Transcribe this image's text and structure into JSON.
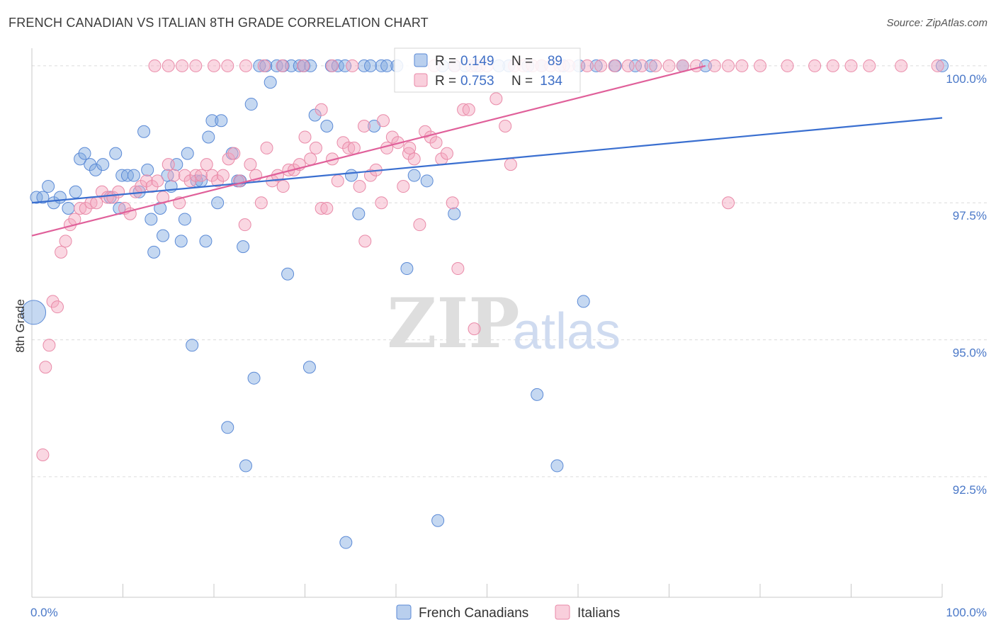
{
  "header": {
    "title": "FRENCH CANADIAN VS ITALIAN 8TH GRADE CORRELATION CHART",
    "source": "Source: ZipAtlas.com"
  },
  "watermark": {
    "zip": "ZIP",
    "atlas": "atlas"
  },
  "chart_data": {
    "type": "scatter",
    "ylabel": "8th Grade",
    "xlim": [
      0,
      100
    ],
    "ylim": [
      90.3,
      100.4
    ],
    "x_tick_labels": [
      {
        "value": 0,
        "label": "0.0%"
      },
      {
        "value": 100,
        "label": "100.0%"
      }
    ],
    "y_tick_labels": [
      {
        "value": 100.0,
        "label": "100.0%"
      },
      {
        "value": 97.5,
        "label": "97.5%"
      },
      {
        "value": 95.0,
        "label": "95.0%"
      },
      {
        "value": 92.5,
        "label": "92.5%"
      }
    ],
    "grid": "horizontal dashed",
    "legend_top": [
      {
        "series": "French Canadians",
        "r_label": "R =",
        "r_value": "0.149",
        "n_label": "N =",
        "n_value": "89"
      },
      {
        "series": "Italians",
        "r_label": "R =",
        "r_value": "0.753",
        "n_label": "N =",
        "n_value": "134"
      }
    ],
    "legend_bottom_placement": "bottom-center",
    "series": [
      {
        "name": "French Canadians",
        "color": "#7fa8e0",
        "stroke": "#5b8ad6",
        "line_color": "#3a6fd0",
        "trend": {
          "x": [
            0,
            100
          ],
          "y": [
            97.5,
            99.05
          ]
        },
        "points": [
          [
            0.5,
            97.6
          ],
          [
            1.2,
            97.6
          ],
          [
            1.8,
            97.8
          ],
          [
            2.4,
            97.5
          ],
          [
            3.1,
            97.6
          ],
          [
            4.0,
            97.4
          ],
          [
            4.8,
            97.7
          ],
          [
            5.3,
            98.3
          ],
          [
            5.8,
            98.4
          ],
          [
            6.4,
            98.2
          ],
          [
            7.0,
            98.1
          ],
          [
            7.8,
            98.2
          ],
          [
            8.6,
            97.6
          ],
          [
            9.2,
            98.4
          ],
          [
            9.6,
            97.4
          ],
          [
            9.9,
            98.0
          ],
          [
            10.5,
            98.0
          ],
          [
            11.2,
            98.0
          ],
          [
            11.8,
            97.7
          ],
          [
            12.3,
            98.8
          ],
          [
            12.7,
            98.1
          ],
          [
            13.1,
            97.2
          ],
          [
            13.4,
            96.6
          ],
          [
            14.1,
            97.4
          ],
          [
            14.4,
            96.9
          ],
          [
            14.9,
            98.0
          ],
          [
            15.3,
            97.8
          ],
          [
            15.9,
            98.2
          ],
          [
            16.4,
            96.8
          ],
          [
            16.8,
            97.2
          ],
          [
            17.1,
            98.4
          ],
          [
            18.1,
            97.9
          ],
          [
            18.6,
            97.9
          ],
          [
            19.1,
            96.8
          ],
          [
            19.4,
            98.7
          ],
          [
            19.8,
            99.0
          ],
          [
            20.4,
            97.5
          ],
          [
            20.8,
            99.0
          ],
          [
            22.0,
            98.4
          ],
          [
            22.6,
            97.9
          ],
          [
            22.9,
            97.9
          ],
          [
            23.2,
            96.7
          ],
          [
            24.1,
            99.3
          ],
          [
            25.0,
            100.0
          ],
          [
            25.7,
            100.0
          ],
          [
            26.2,
            99.7
          ],
          [
            26.9,
            100.0
          ],
          [
            27.6,
            100.0
          ],
          [
            28.1,
            96.2
          ],
          [
            28.5,
            100.0
          ],
          [
            29.4,
            100.0
          ],
          [
            29.9,
            100.0
          ],
          [
            30.6,
            100.0
          ],
          [
            31.1,
            99.1
          ],
          [
            32.4,
            98.9
          ],
          [
            32.9,
            100.0
          ],
          [
            33.6,
            100.0
          ],
          [
            34.4,
            100.0
          ],
          [
            35.1,
            98.0
          ],
          [
            35.9,
            97.3
          ],
          [
            36.5,
            100.0
          ],
          [
            37.2,
            100.0
          ],
          [
            37.6,
            98.9
          ],
          [
            38.4,
            100.0
          ],
          [
            39.0,
            100.0
          ],
          [
            40.1,
            100.0
          ],
          [
            41.2,
            96.3
          ],
          [
            42.0,
            98.0
          ],
          [
            43.4,
            97.9
          ],
          [
            45.1,
            100.0
          ],
          [
            46.4,
            100.0
          ],
          [
            47.6,
            100.0
          ],
          [
            48.8,
            100.0
          ],
          [
            52.4,
            100.0
          ],
          [
            54.5,
            100.0
          ],
          [
            56.0,
            100.0
          ],
          [
            58.4,
            100.0
          ],
          [
            60.1,
            100.0
          ],
          [
            62.0,
            100.0
          ],
          [
            64.1,
            100.0
          ],
          [
            66.3,
            100.0
          ],
          [
            68.0,
            100.0
          ],
          [
            71.5,
            100.0
          ],
          [
            74.0,
            100.0
          ],
          [
            100.0,
            100.0
          ],
          [
            0.2,
            95.5
          ],
          [
            17.6,
            94.9
          ],
          [
            21.5,
            93.4
          ],
          [
            23.5,
            92.7
          ],
          [
            24.4,
            94.3
          ],
          [
            30.5,
            94.5
          ],
          [
            34.5,
            91.3
          ],
          [
            44.6,
            91.7
          ],
          [
            55.5,
            94.0
          ],
          [
            57.7,
            92.7
          ],
          [
            60.6,
            95.7
          ],
          [
            46.4,
            97.3
          ],
          [
            51.3,
            100.0
          ]
        ]
      },
      {
        "name": "Italians",
        "color": "#f4a7bf",
        "stroke": "#e98aa8",
        "line_color": "#e0609a",
        "trend": {
          "x": [
            0,
            74
          ],
          "y": [
            96.9,
            100.0
          ]
        },
        "points": [
          [
            1.2,
            92.9
          ],
          [
            1.5,
            94.5
          ],
          [
            1.9,
            94.9
          ],
          [
            2.3,
            95.7
          ],
          [
            2.8,
            95.6
          ],
          [
            3.2,
            96.6
          ],
          [
            3.7,
            96.8
          ],
          [
            4.2,
            97.1
          ],
          [
            4.7,
            97.2
          ],
          [
            5.3,
            97.4
          ],
          [
            5.9,
            97.4
          ],
          [
            6.5,
            97.5
          ],
          [
            7.1,
            97.5
          ],
          [
            7.7,
            97.7
          ],
          [
            8.3,
            97.6
          ],
          [
            8.9,
            97.6
          ],
          [
            9.5,
            97.7
          ],
          [
            10.2,
            97.4
          ],
          [
            10.8,
            97.3
          ],
          [
            11.4,
            97.7
          ],
          [
            12.0,
            97.8
          ],
          [
            12.6,
            97.9
          ],
          [
            13.2,
            97.8
          ],
          [
            13.8,
            97.9
          ],
          [
            14.4,
            97.6
          ],
          [
            15.0,
            98.2
          ],
          [
            15.6,
            98.0
          ],
          [
            16.2,
            97.5
          ],
          [
            16.8,
            98.0
          ],
          [
            17.4,
            97.9
          ],
          [
            18.0,
            98.0
          ],
          [
            18.6,
            98.0
          ],
          [
            19.2,
            98.2
          ],
          [
            19.8,
            98.0
          ],
          [
            20.4,
            97.9
          ],
          [
            21.0,
            98.0
          ],
          [
            21.6,
            98.3
          ],
          [
            22.2,
            98.4
          ],
          [
            22.8,
            97.9
          ],
          [
            23.4,
            97.1
          ],
          [
            24.0,
            98.2
          ],
          [
            24.6,
            98.0
          ],
          [
            25.2,
            97.5
          ],
          [
            25.8,
            98.5
          ],
          [
            26.4,
            97.9
          ],
          [
            27.0,
            98.0
          ],
          [
            27.6,
            97.8
          ],
          [
            28.2,
            98.1
          ],
          [
            28.8,
            98.1
          ],
          [
            29.4,
            98.2
          ],
          [
            30.0,
            98.7
          ],
          [
            30.6,
            98.3
          ],
          [
            31.2,
            98.5
          ],
          [
            31.8,
            97.4
          ],
          [
            32.4,
            97.4
          ],
          [
            33.0,
            98.3
          ],
          [
            33.6,
            97.9
          ],
          [
            34.2,
            98.6
          ],
          [
            34.8,
            98.5
          ],
          [
            35.4,
            98.5
          ],
          [
            36.0,
            97.8
          ],
          [
            36.6,
            96.8
          ],
          [
            37.2,
            98.0
          ],
          [
            37.8,
            98.1
          ],
          [
            38.4,
            97.5
          ],
          [
            39.0,
            98.5
          ],
          [
            39.6,
            98.7
          ],
          [
            40.2,
            98.6
          ],
          [
            40.8,
            97.8
          ],
          [
            41.4,
            98.4
          ],
          [
            42.0,
            98.3
          ],
          [
            42.6,
            97.1
          ],
          [
            43.2,
            98.8
          ],
          [
            43.8,
            98.7
          ],
          [
            44.4,
            98.6
          ],
          [
            45.0,
            98.3
          ],
          [
            45.6,
            98.4
          ],
          [
            46.2,
            97.5
          ],
          [
            46.8,
            96.3
          ],
          [
            47.4,
            99.2
          ],
          [
            48.0,
            99.2
          ],
          [
            48.6,
            95.2
          ],
          [
            49.2,
            100.0
          ],
          [
            50.0,
            100.0
          ],
          [
            51.0,
            99.4
          ],
          [
            52.0,
            98.9
          ],
          [
            53.0,
            100.0
          ],
          [
            54.0,
            100.0
          ],
          [
            55.0,
            100.0
          ],
          [
            56.0,
            100.0
          ],
          [
            57.0,
            100.0
          ],
          [
            58.0,
            100.0
          ],
          [
            59.0,
            100.0
          ],
          [
            61.0,
            100.0
          ],
          [
            62.5,
            100.0
          ],
          [
            64.0,
            100.0
          ],
          [
            65.5,
            100.0
          ],
          [
            67.0,
            100.0
          ],
          [
            68.5,
            100.0
          ],
          [
            70.0,
            100.0
          ],
          [
            71.5,
            100.0
          ],
          [
            73.0,
            100.0
          ],
          [
            75.0,
            100.0
          ],
          [
            76.5,
            100.0
          ],
          [
            78.0,
            100.0
          ],
          [
            80.0,
            100.0
          ],
          [
            83.0,
            100.0
          ],
          [
            86.0,
            100.0
          ],
          [
            88.0,
            100.0
          ],
          [
            90.0,
            100.0
          ],
          [
            92.0,
            100.0
          ],
          [
            95.5,
            100.0
          ],
          [
            99.5,
            100.0
          ],
          [
            76.5,
            97.5
          ],
          [
            52.6,
            98.2
          ],
          [
            38.6,
            99.0
          ],
          [
            41.5,
            98.5
          ],
          [
            36.5,
            98.9
          ],
          [
            31.8,
            99.2
          ],
          [
            44.2,
            100.0
          ],
          [
            46.5,
            100.0
          ],
          [
            48.3,
            100.0
          ],
          [
            35.2,
            100.0
          ],
          [
            33.0,
            100.0
          ],
          [
            29.8,
            100.0
          ],
          [
            27.5,
            100.0
          ],
          [
            25.5,
            100.0
          ],
          [
            23.5,
            100.0
          ],
          [
            21.5,
            100.0
          ],
          [
            20.0,
            100.0
          ],
          [
            18.0,
            100.0
          ],
          [
            16.5,
            100.0
          ],
          [
            15.0,
            100.0
          ],
          [
            13.5,
            100.0
          ]
        ]
      }
    ]
  }
}
